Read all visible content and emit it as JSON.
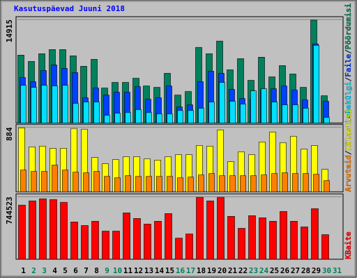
{
  "chart_data": [
    {
      "type": "bar",
      "title": "Kasutuspäevad Juuni 2018",
      "legend_separator": "/",
      "ylim": [
        0,
        14915
      ],
      "yticks": [
        14915
      ],
      "series": [
        {
          "name": "Pöördumisi",
          "color": "#00805c",
          "values": [
            9780,
            8870,
            9980,
            10580,
            10580,
            9680,
            8170,
            9170,
            5040,
            5850,
            5850,
            6450,
            5340,
            5140,
            7160,
            4030,
            4540,
            10890,
            9980,
            11800,
            7660,
            9270,
            6150,
            9480,
            6650,
            8270,
            7060,
            5140,
            14820,
            3930,
            null
          ]
        },
        {
          "name": "Faile",
          "color": "#0040ff",
          "values": [
            6550,
            5950,
            7560,
            8370,
            7860,
            7260,
            3630,
            5040,
            4030,
            4440,
            4440,
            5240,
            3430,
            3630,
            5340,
            2320,
            2620,
            5950,
            7460,
            7160,
            4840,
            3530,
            3430,
            4840,
            4940,
            5340,
            4740,
            3330,
            11400,
            3130,
            null
          ]
        },
        {
          "name": "Lehekülgi",
          "color": "#00e0ff",
          "values": [
            5440,
            5140,
            5440,
            5340,
            5440,
            2820,
            3020,
            3020,
            1110,
            1410,
            1510,
            1920,
            1510,
            1310,
            1310,
            1810,
            1810,
            2120,
            3020,
            5850,
            3130,
            2720,
            4640,
            4940,
            3020,
            2620,
            2620,
            2120,
            11190,
            810,
            null
          ]
        }
      ]
    },
    {
      "type": "bar",
      "legend_separator": "/",
      "ylim": [
        0,
        884
      ],
      "yticks": [
        884
      ],
      "series": [
        {
          "name": "Külastusi",
          "color": "#ffff00",
          "values": [
            874,
            615,
            625,
            596,
            596,
            865,
            855,
            471,
            384,
            442,
            481,
            481,
            452,
            433,
            481,
            509,
            509,
            634,
            625,
            846,
            413,
            548,
            509,
            682,
            817,
            673,
            759,
            586,
            634,
            308,
            null
          ]
        },
        {
          "name": "Arvuteid",
          "color": "#ff8000",
          "values": [
            298,
            279,
            279,
            365,
            298,
            269,
            260,
            279,
            211,
            192,
            221,
            211,
            211,
            211,
            211,
            192,
            202,
            231,
            250,
            221,
            221,
            221,
            221,
            231,
            250,
            260,
            250,
            250,
            240,
            154,
            null
          ]
        }
      ]
    },
    {
      "type": "bar",
      "ylim": [
        0,
        744523
      ],
      "yticks": [
        744523
      ],
      "categories": [
        "1",
        "2",
        "3",
        "4",
        "5",
        "6",
        "7",
        "8",
        "9",
        "10",
        "11",
        "12",
        "13",
        "14",
        "15",
        "16",
        "17",
        "18",
        "19",
        "20",
        "21",
        "22",
        "23",
        "24",
        "25",
        "26",
        "27",
        "28",
        "29",
        "30",
        "31"
      ],
      "label_colors": [
        "#000000",
        "#00805c",
        "#00805c",
        "#000000",
        "#000000",
        "#000000",
        "#000000",
        "#000000",
        "#00805c",
        "#00805c",
        "#000000",
        "#000000",
        "#000000",
        "#000000",
        "#000000",
        "#00805c",
        "#00805c",
        "#000000",
        "#000000",
        "#000000",
        "#000000",
        "#000000",
        "#00805c",
        "#00805c",
        "#000000",
        "#000000",
        "#000000",
        "#000000",
        "#000000",
        "#00805c",
        "#00805c"
      ],
      "series": [
        {
          "name": "KBaite",
          "color": "#ff0000",
          "values": [
            644100,
            694300,
            719400,
            711000,
            677600,
            443300,
            401500,
            451700,
            334600,
            334600,
            552100,
            485200,
            418300,
            451700,
            543700,
            250900,
            301100,
            736100,
            694300,
            736100,
            510300,
            368100,
            518600,
            493500,
            451700,
            568800,
            451700,
            384800,
            602300,
            292800,
            null
          ]
        }
      ]
    }
  ]
}
